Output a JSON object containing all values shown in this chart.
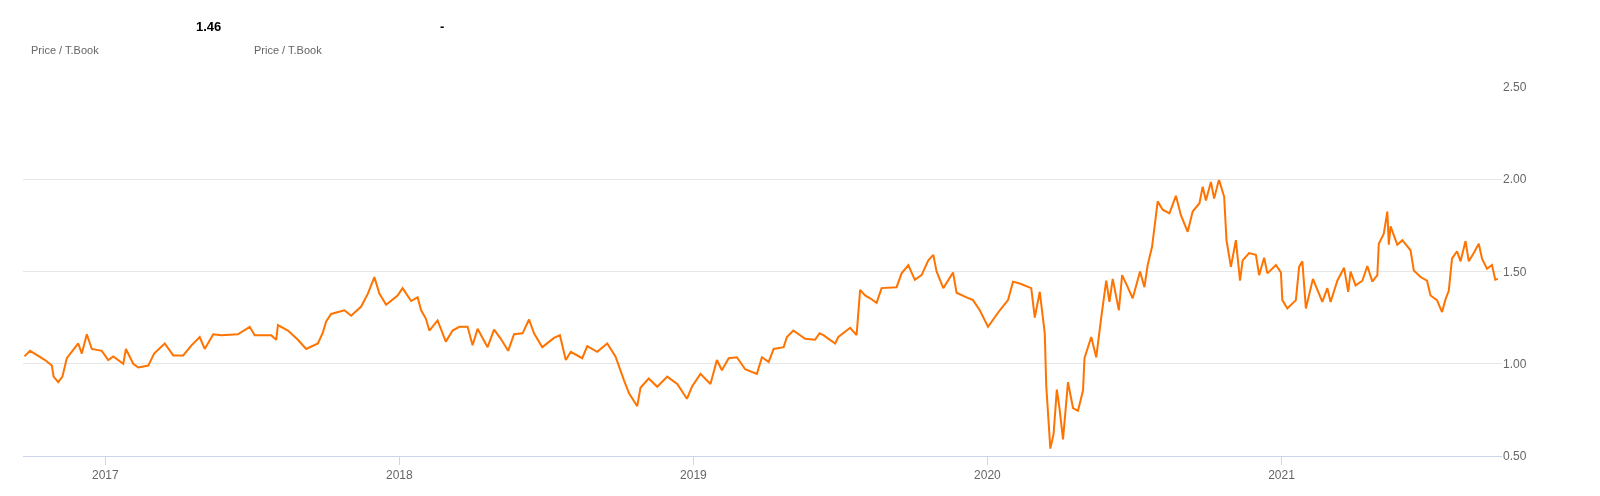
{
  "chart_data": {
    "type": "line",
    "annotations": [
      "1.46",
      "Price / T.Book",
      "-",
      "Price / T.Book"
    ],
    "xlim": [
      2016.72,
      2021.75
    ],
    "xticks": [
      2017,
      2018,
      2019,
      2020,
      2021
    ],
    "ylim": [
      0.5,
      2.5
    ],
    "yticks": [
      {
        "value": 0.5,
        "label": "0.50"
      },
      {
        "value": 1.0,
        "label": "1.00"
      },
      {
        "value": 1.5,
        "label": "1.50"
      },
      {
        "value": 2.0,
        "label": "2.00"
      },
      {
        "value": 2.5,
        "label": "2.50"
      }
    ],
    "grid": "y",
    "marker": "none",
    "line_style": "solid",
    "series": [
      {
        "color": "#ff7300",
        "x": [
          2016.725,
          2016.744,
          2016.795,
          2016.818,
          2016.824,
          2016.84,
          2016.854,
          2016.869,
          2016.908,
          2016.92,
          2016.937,
          2016.954,
          2016.988,
          2017.01,
          2017.027,
          2017.061,
          2017.07,
          2017.095,
          2017.112,
          2017.146,
          2017.166,
          2017.202,
          2017.231,
          2017.265,
          2017.293,
          2017.321,
          2017.338,
          2017.367,
          2017.395,
          2017.451,
          2017.491,
          2017.508,
          2017.564,
          2017.581,
          2017.587,
          2017.621,
          2017.655,
          2017.683,
          2017.723,
          2017.74,
          2017.751,
          2017.768,
          2017.813,
          2017.836,
          2017.87,
          2017.893,
          2017.915,
          2017.932,
          2017.955,
          2017.994,
          2018.011,
          2018.04,
          2018.062,
          2018.074,
          2018.09,
          2018.102,
          2018.13,
          2018.158,
          2018.181,
          2018.204,
          2018.232,
          2018.249,
          2018.266,
          2018.3,
          2018.322,
          2018.345,
          2018.37,
          2018.39,
          2018.419,
          2018.441,
          2018.458,
          2018.486,
          2018.526,
          2018.546,
          2018.566,
          2018.583,
          2018.622,
          2018.639,
          2018.673,
          2018.707,
          2018.735,
          2018.764,
          2018.781,
          2018.809,
          2018.82,
          2018.848,
          2018.877,
          2018.911,
          2018.945,
          2018.978,
          2018.995,
          2019.024,
          2019.058,
          2019.08,
          2019.097,
          2019.12,
          2019.148,
          2019.176,
          2019.216,
          2019.233,
          2019.256,
          2019.273,
          2019.307,
          2019.318,
          2019.34,
          2019.38,
          2019.414,
          2019.429,
          2019.442,
          2019.482,
          2019.493,
          2019.533,
          2019.555,
          2019.567,
          2019.584,
          2019.601,
          2019.623,
          2019.64,
          2019.691,
          2019.708,
          2019.731,
          2019.753,
          2019.776,
          2019.799,
          2019.816,
          2019.827,
          2019.85,
          2019.883,
          2019.895,
          2019.929,
          2019.951,
          2019.974,
          2020.002,
          2020.042,
          2020.07,
          2020.087,
          2020.11,
          2020.149,
          2020.161,
          2020.178,
          2020.195,
          2020.2,
          2020.214,
          2020.225,
          2020.236,
          2020.245,
          2020.257,
          2020.274,
          2020.291,
          2020.308,
          2020.325,
          2020.33,
          2020.353,
          2020.37,
          2020.387,
          2020.404,
          2020.415,
          2020.426,
          2020.447,
          2020.458,
          2020.477,
          2020.494,
          2020.519,
          2020.534,
          2020.545,
          2020.56,
          2020.579,
          2020.596,
          2020.619,
          2020.641,
          2020.658,
          2020.681,
          2020.698,
          2020.721,
          2020.732,
          2020.743,
          2020.76,
          2020.771,
          2020.786,
          2020.788,
          2020.805,
          2020.813,
          2020.828,
          2020.845,
          2020.859,
          2020.868,
          2020.89,
          2020.913,
          2020.924,
          2020.941,
          2020.952,
          2020.981,
          2020.998,
          2021.003,
          2021.02,
          2021.049,
          2021.06,
          2021.071,
          2021.083,
          2021.107,
          2021.139,
          2021.156,
          2021.167,
          2021.19,
          2021.213,
          2021.227,
          2021.235,
          2021.252,
          2021.275,
          2021.292,
          2021.309,
          2021.326,
          2021.331,
          2021.348,
          2021.36,
          2021.365,
          2021.371,
          2021.394,
          2021.411,
          2021.439,
          2021.45,
          2021.473,
          2021.495,
          2021.507,
          2021.529,
          2021.546,
          2021.558,
          2021.569,
          2021.58,
          2021.597,
          2021.609,
          2021.626,
          2021.637,
          2021.654,
          2021.671,
          2021.682,
          2021.699,
          2021.716,
          2021.727,
          2021.736
        ],
        "values": [
          1.04,
          1.07,
          1.02,
          0.99,
          0.93,
          0.9,
          0.93,
          1.03,
          1.11,
          1.055,
          1.16,
          1.08,
          1.07,
          1.02,
          1.04,
          1.0,
          1.08,
          1.0,
          0.98,
          0.99,
          1.055,
          1.11,
          1.045,
          1.045,
          1.1,
          1.145,
          1.08,
          1.16,
          1.155,
          1.16,
          1.2,
          1.155,
          1.155,
          1.13,
          1.21,
          1.18,
          1.13,
          1.08,
          1.11,
          1.17,
          1.23,
          1.27,
          1.29,
          1.26,
          1.31,
          1.38,
          1.47,
          1.38,
          1.32,
          1.37,
          1.41,
          1.34,
          1.36,
          1.29,
          1.245,
          1.18,
          1.235,
          1.12,
          1.18,
          1.2,
          1.2,
          1.1,
          1.19,
          1.09,
          1.185,
          1.135,
          1.07,
          1.16,
          1.165,
          1.24,
          1.165,
          1.09,
          1.14,
          1.155,
          1.02,
          1.065,
          1.03,
          1.095,
          1.065,
          1.11,
          1.04,
          0.91,
          0.84,
          0.77,
          0.87,
          0.92,
          0.875,
          0.93,
          0.89,
          0.81,
          0.875,
          0.945,
          0.89,
          1.02,
          0.965,
          1.03,
          1.035,
          0.97,
          0.945,
          1.035,
          1.01,
          1.08,
          1.09,
          1.145,
          1.18,
          1.135,
          1.13,
          1.165,
          1.155,
          1.11,
          1.145,
          1.195,
          1.155,
          1.4,
          1.37,
          1.355,
          1.33,
          1.41,
          1.415,
          1.49,
          1.535,
          1.455,
          1.48,
          1.56,
          1.59,
          1.5,
          1.41,
          1.495,
          1.385,
          1.36,
          1.345,
          1.29,
          1.2,
          1.29,
          1.345,
          1.445,
          1.435,
          1.41,
          1.25,
          1.39,
          1.165,
          0.88,
          0.54,
          0.62,
          0.86,
          0.76,
          0.59,
          0.9,
          0.76,
          0.745,
          0.855,
          1.03,
          1.145,
          1.035,
          1.25,
          1.45,
          1.335,
          1.46,
          1.29,
          1.48,
          1.415,
          1.355,
          1.5,
          1.415,
          1.535,
          1.635,
          1.88,
          1.835,
          1.815,
          1.91,
          1.805,
          1.715,
          1.825,
          1.87,
          1.96,
          1.885,
          1.985,
          1.895,
          1.99,
          1.995,
          1.905,
          1.67,
          1.525,
          1.67,
          1.45,
          1.56,
          1.6,
          1.59,
          1.48,
          1.575,
          1.49,
          1.535,
          1.495,
          1.345,
          1.3,
          1.345,
          1.525,
          1.555,
          1.3,
          1.46,
          1.335,
          1.41,
          1.335,
          1.45,
          1.52,
          1.39,
          1.5,
          1.425,
          1.45,
          1.53,
          1.445,
          1.48,
          1.65,
          1.705,
          1.825,
          1.645,
          1.745,
          1.645,
          1.67,
          1.615,
          1.505,
          1.47,
          1.45,
          1.37,
          1.345,
          1.28,
          1.35,
          1.395,
          1.57,
          1.61,
          1.555,
          1.665,
          1.555,
          1.6,
          1.65,
          1.57,
          1.515,
          1.535,
          1.455,
          1.46
        ]
      }
    ]
  }
}
